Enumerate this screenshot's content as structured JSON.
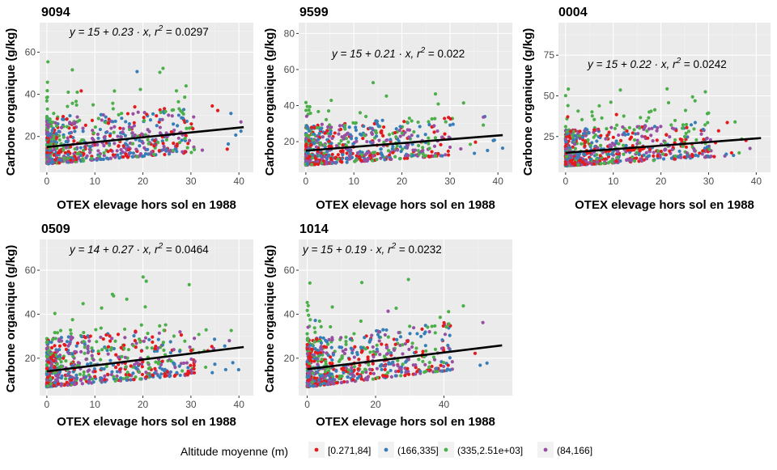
{
  "legend": {
    "title": "Altitude moyenne (m)",
    "entries": [
      {
        "label": "[0.271,84]",
        "color": "#E41A1C"
      },
      {
        "label": "(166,335]",
        "color": "#377EB8"
      },
      {
        "label": "(335,2.51e+03]",
        "color": "#4DAF4A"
      },
      {
        "label": "(84,166]",
        "color": "#984EA3"
      }
    ]
  },
  "chart_data": [
    {
      "type": "scatter",
      "title": "9094",
      "xlabel": "OTEX elevage hors sol en 1988",
      "ylabel": "Carbone organique (g/kg)",
      "xlim": [
        -1.5,
        43
      ],
      "ylim": [
        3,
        74
      ],
      "xticks": [
        0,
        10,
        20,
        30,
        40
      ],
      "yticks": [
        20,
        40,
        60
      ],
      "regression": {
        "intercept": 15,
        "slope": 0.23,
        "r2": 0.0297,
        "x_range": [
          0,
          41
        ]
      },
      "equation": {
        "y_text": "y = 15 + 0.23 · x,  r",
        "r2_value": "2",
        "r2_text": " = 0.0297"
      }
    },
    {
      "type": "scatter",
      "title": "9599",
      "xlabel": "OTEX elevage hors sol en 1988",
      "ylabel": "Carbone organique (g/kg)",
      "xlim": [
        -1.5,
        43
      ],
      "ylim": [
        3,
        86
      ],
      "xticks": [
        0,
        10,
        20,
        30,
        40
      ],
      "yticks": [
        20,
        40,
        60,
        80
      ],
      "regression": {
        "intercept": 15,
        "slope": 0.21,
        "r2": 0.022,
        "x_range": [
          0,
          41
        ]
      },
      "equation": {
        "y_text": "y = 15 + 0.21 · x,  r",
        "r2_value": "2",
        "r2_text": " = 0.022"
      }
    },
    {
      "type": "scatter",
      "title": "0004",
      "xlabel": "OTEX elevage hors sol en 1988",
      "ylabel": "Carbone organique (g/kg)",
      "xlim": [
        -1.5,
        43
      ],
      "ylim": [
        3,
        95
      ],
      "xticks": [
        0,
        10,
        20,
        30,
        40
      ],
      "yticks": [
        25,
        50,
        75
      ],
      "regression": {
        "intercept": 15,
        "slope": 0.22,
        "r2": 0.0242,
        "x_range": [
          0,
          41
        ]
      },
      "equation": {
        "y_text": "y = 15 + 0.22 · x,  r",
        "r2_value": "2",
        "r2_text": " = 0.0242"
      }
    },
    {
      "type": "scatter",
      "title": "0509",
      "xlabel": "OTEX elevage hors sol en 1988",
      "ylabel": "Carbone organique (g/kg)",
      "xlim": [
        -1.5,
        43
      ],
      "ylim": [
        3,
        74
      ],
      "xticks": [
        0,
        10,
        20,
        30,
        40
      ],
      "yticks": [
        20,
        40,
        60
      ],
      "regression": {
        "intercept": 14,
        "slope": 0.27,
        "r2": 0.0464,
        "x_range": [
          0,
          41
        ]
      },
      "equation": {
        "y_text": "y = 14 + 0.27 · x,  r",
        "r2_value": "2",
        "r2_text": " = 0.0464"
      }
    },
    {
      "type": "scatter",
      "title": "1014",
      "xlabel": "OTEX elevage hors sol en 1988",
      "ylabel": "Carbone organique (g/kg)",
      "xlim": [
        -2.5,
        60
      ],
      "ylim": [
        3,
        74
      ],
      "xticks": [
        0,
        20,
        40
      ],
      "yticks": [
        20,
        40,
        60
      ],
      "regression": {
        "intercept": 15,
        "slope": 0.19,
        "r2": 0.0232,
        "x_range": [
          0,
          57
        ]
      },
      "equation": {
        "y_text": "y = 15 + 0.19 · x,  r",
        "r2_value": "2",
        "r2_text": " = 0.0232"
      }
    }
  ]
}
